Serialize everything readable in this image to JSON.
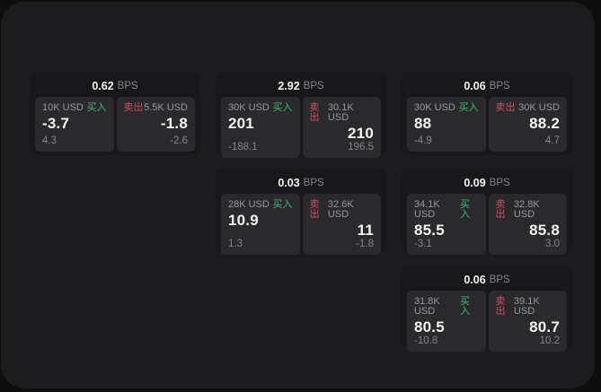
{
  "unit_label": "BPS",
  "side_labels": {
    "buy": "买入",
    "sell": "卖出"
  },
  "colors": {
    "page_bg": "#0e0e0f",
    "panel_bg": "#1c1c1e",
    "card_bg": "#18181a",
    "cell_bg": "#2a2a2d",
    "buy_green": "#3eb873",
    "sell_red": "#d24b61",
    "value_white": "#f4f4f5",
    "muted_gray": "#85858a"
  },
  "cards": [
    {
      "bps": "0.62",
      "buy": {
        "size": "10K USD",
        "value": "-3.7",
        "delta": "4.3"
      },
      "sell": {
        "size": "5.5K USD",
        "value": "-1.8",
        "delta": "-2.6"
      }
    },
    {
      "bps": "2.92",
      "buy": {
        "size": "30K USD",
        "value": "201",
        "delta": "-188.1"
      },
      "sell": {
        "size": "30.1K USD",
        "value": "210",
        "delta": "196.5"
      }
    },
    {
      "bps": "0.06",
      "buy": {
        "size": "30K USD",
        "value": "88",
        "delta": "-4.9"
      },
      "sell": {
        "size": "30K USD",
        "value": "88.2",
        "delta": "4.7"
      }
    },
    {
      "bps": "0.03",
      "buy": {
        "size": "28K USD",
        "value": "10.9",
        "delta": "1.3"
      },
      "sell": {
        "size": "32.6K USD",
        "value": "11",
        "delta": "-1.8"
      }
    },
    {
      "bps": "0.09",
      "buy": {
        "size": "34.1K USD",
        "value": "85.5",
        "delta": "-3.1"
      },
      "sell": {
        "size": "32.8K USD",
        "value": "85.8",
        "delta": "3.0"
      }
    },
    {
      "bps": "0.06",
      "buy": {
        "size": "31.8K USD",
        "value": "80.5",
        "delta": "-10.8"
      },
      "sell": {
        "size": "39.1K USD",
        "value": "80.7",
        "delta": "10.2"
      }
    }
  ]
}
